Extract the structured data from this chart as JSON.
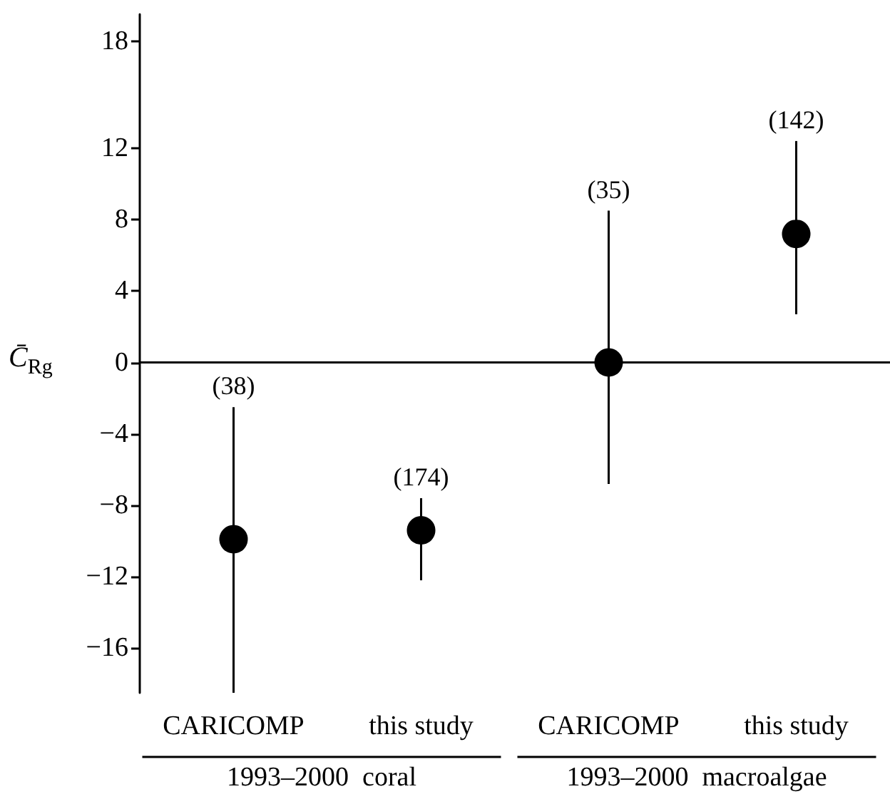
{
  "chart_data": {
    "type": "scatter",
    "ylabel": "C̄$_{Rg}$",
    "categories": [
      "CARICOMP",
      "this study",
      "CARICOMP",
      "this study"
    ],
    "series": [
      {
        "color": "#000000",
        "values": [
          -9.9,
          -9.4,
          0,
          7.2
        ],
        "errors": [
          [
            -18.5,
            -2.5
          ],
          [
            -12.2,
            -7.6
          ],
          [
            -6.8,
            8.5
          ],
          [
            2.7,
            12.4
          ]
        ]
      }
    ],
    "ylim": [
      -18.5,
      19.5
    ],
    "yticks": [
      -16,
      -12,
      -8,
      -4,
      0,
      4,
      8,
      12,
      18
    ],
    "annotations": [
      "1993–2000  coral",
      "1993–2000  macroalgae",
      "(38)",
      "(174)",
      "(35)",
      "(142)"
    ],
    "marker": "circle"
  }
}
